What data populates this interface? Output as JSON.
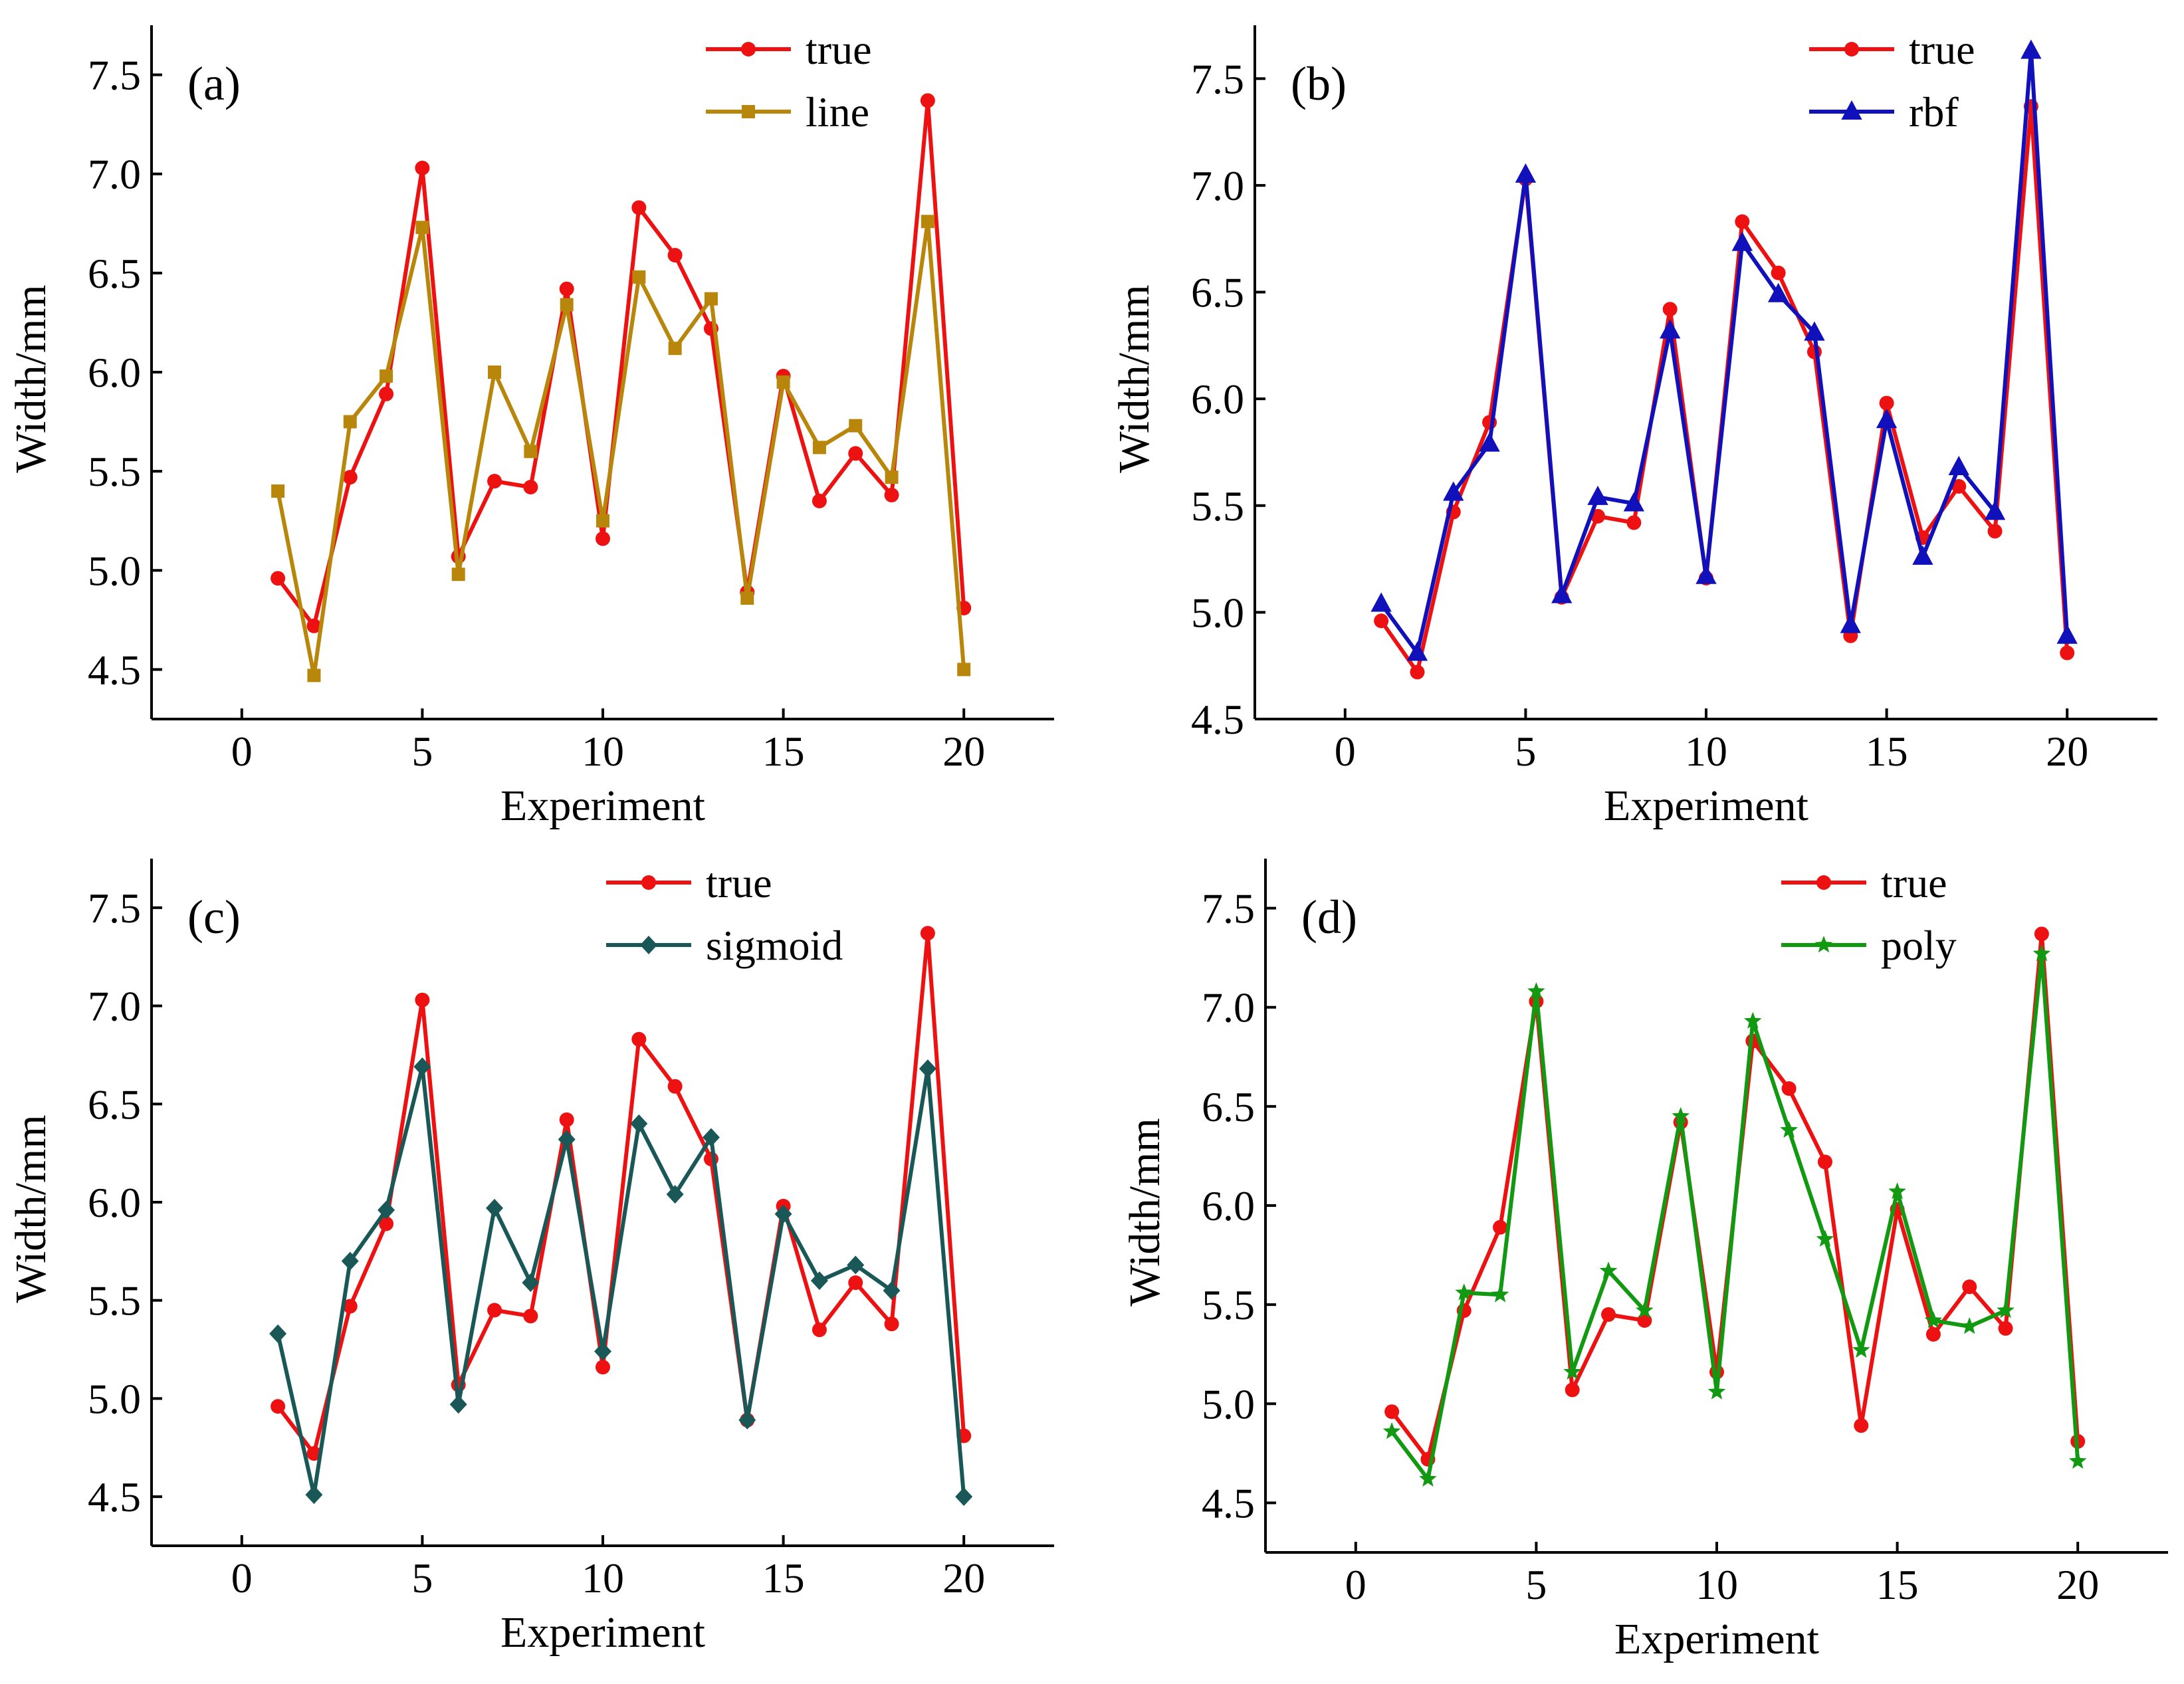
{
  "chart_data": [
    {
      "type": "line",
      "panel_label": "(a)",
      "xlabel": "Experiment",
      "ylabel": "Width/mm",
      "xlim": [
        -2.5,
        22.5
      ],
      "ylim": [
        4.25,
        7.75
      ],
      "xticks": [
        0,
        5,
        10,
        15,
        20
      ],
      "yticks": [
        4.5,
        5.0,
        5.5,
        6.0,
        6.5,
        7.0,
        7.5
      ],
      "legend_position": "top-right",
      "x": [
        1,
        2,
        3,
        4,
        5,
        6,
        7,
        8,
        9,
        10,
        11,
        12,
        13,
        14,
        15,
        16,
        17,
        18,
        19,
        20
      ],
      "series": [
        {
          "name": "true",
          "color": "#ee1111",
          "marker": "circle",
          "values": [
            4.96,
            4.72,
            5.47,
            5.89,
            7.03,
            5.07,
            5.45,
            5.42,
            6.42,
            5.16,
            6.83,
            6.59,
            6.22,
            4.89,
            5.98,
            5.35,
            5.59,
            5.38,
            7.37,
            4.81
          ]
        },
        {
          "name": "line",
          "color": "#b8860b",
          "marker": "square",
          "values": [
            5.4,
            4.47,
            5.75,
            5.98,
            6.73,
            4.98,
            6.0,
            5.6,
            6.34,
            5.25,
            6.48,
            6.12,
            6.37,
            4.86,
            5.95,
            5.62,
            5.73,
            5.47,
            6.76,
            4.5
          ]
        }
      ]
    },
    {
      "type": "line",
      "panel_label": "(b)",
      "xlabel": "Experiment",
      "ylabel": "Width/mm",
      "xlim": [
        -2.5,
        22.5
      ],
      "ylim": [
        4.5,
        7.75
      ],
      "xticks": [
        0,
        5,
        10,
        15,
        20
      ],
      "yticks": [
        4.5,
        5.0,
        5.5,
        6.0,
        6.5,
        7.0,
        7.5
      ],
      "legend_position": "top-right",
      "x": [
        1,
        2,
        3,
        4,
        5,
        6,
        7,
        8,
        9,
        10,
        11,
        12,
        13,
        14,
        15,
        16,
        17,
        18,
        19,
        20
      ],
      "series": [
        {
          "name": "true",
          "color": "#ee1111",
          "marker": "circle",
          "values": [
            4.96,
            4.72,
            5.47,
            5.89,
            7.03,
            5.07,
            5.45,
            5.42,
            6.42,
            5.16,
            6.83,
            6.59,
            6.22,
            4.89,
            5.98,
            5.35,
            5.59,
            5.38,
            7.37,
            4.81
          ]
        },
        {
          "name": "rbf",
          "color": "#1111bb",
          "marker": "triangle",
          "values": [
            5.04,
            4.81,
            5.56,
            5.79,
            7.05,
            5.08,
            5.54,
            5.51,
            6.32,
            5.17,
            6.73,
            6.49,
            6.31,
            4.94,
            5.9,
            5.26,
            5.68,
            5.47,
            7.63,
            4.89
          ]
        }
      ]
    },
    {
      "type": "line",
      "panel_label": "(c)",
      "xlabel": "Experiment",
      "ylabel": "Width/mm",
      "xlim": [
        -2.5,
        22.5
      ],
      "ylim": [
        4.25,
        7.75
      ],
      "xticks": [
        0,
        5,
        10,
        15,
        20
      ],
      "yticks": [
        4.5,
        5.0,
        5.5,
        6.0,
        6.5,
        7.0,
        7.5
      ],
      "legend_position": "top-right",
      "x": [
        1,
        2,
        3,
        4,
        5,
        6,
        7,
        8,
        9,
        10,
        11,
        12,
        13,
        14,
        15,
        16,
        17,
        18,
        19,
        20
      ],
      "series": [
        {
          "name": "true",
          "color": "#ee1111",
          "marker": "circle",
          "values": [
            4.96,
            4.72,
            5.47,
            5.89,
            7.03,
            5.07,
            5.45,
            5.42,
            6.42,
            5.16,
            6.83,
            6.59,
            6.22,
            4.89,
            5.98,
            5.35,
            5.59,
            5.38,
            7.37,
            4.81
          ]
        },
        {
          "name": "sigmoid",
          "color": "#1a5858",
          "marker": "diamond",
          "values": [
            5.33,
            4.51,
            5.7,
            5.96,
            6.69,
            4.97,
            5.97,
            5.59,
            6.32,
            5.24,
            6.4,
            6.04,
            6.33,
            4.89,
            5.94,
            5.6,
            5.68,
            5.55,
            6.68,
            4.5
          ]
        }
      ]
    },
    {
      "type": "line",
      "panel_label": "(d)",
      "xlabel": "Experiment",
      "ylabel": "Width/mm",
      "xlim": [
        -2.5,
        22.5
      ],
      "ylim": [
        4.25,
        7.75
      ],
      "xticks": [
        0,
        5,
        10,
        15,
        20
      ],
      "yticks": [
        4.5,
        5.0,
        5.5,
        6.0,
        6.5,
        7.0,
        7.5
      ],
      "legend_position": "top-right",
      "x": [
        1,
        2,
        3,
        4,
        5,
        6,
        7,
        8,
        9,
        10,
        11,
        12,
        13,
        14,
        15,
        16,
        17,
        18,
        19,
        20
      ],
      "series": [
        {
          "name": "true",
          "color": "#ee1111",
          "marker": "circle",
          "values": [
            4.96,
            4.72,
            5.47,
            5.89,
            7.03,
            5.07,
            5.45,
            5.42,
            6.42,
            5.16,
            6.83,
            6.59,
            6.22,
            4.89,
            5.98,
            5.35,
            5.59,
            5.38,
            7.37,
            4.81
          ]
        },
        {
          "name": "poly",
          "color": "#119911",
          "marker": "star",
          "values": [
            4.86,
            4.62,
            5.56,
            5.55,
            7.08,
            5.16,
            5.67,
            5.47,
            6.45,
            5.06,
            6.93,
            6.38,
            5.83,
            5.27,
            6.07,
            5.42,
            5.39,
            5.47,
            7.27,
            4.71
          ]
        }
      ]
    }
  ]
}
